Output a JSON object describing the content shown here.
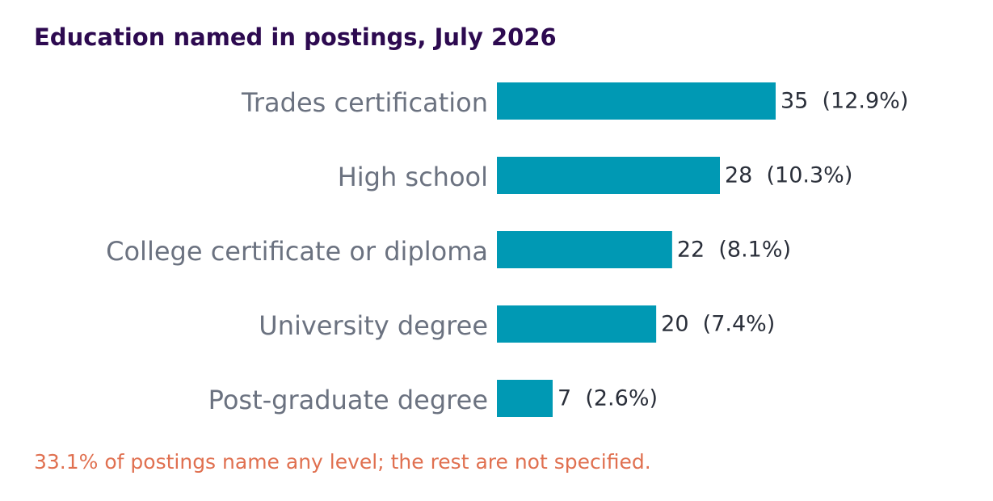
{
  "chart_data": {
    "type": "bar",
    "orientation": "horizontal",
    "title": "Education named in postings, July 2026",
    "categories": [
      "Trades certification",
      "High school",
      "College certificate or diploma",
      "University degree",
      "Post-graduate degree"
    ],
    "values": [
      35,
      28,
      22,
      20,
      7
    ],
    "value_labels": [
      "35  (12.9%)",
      "28  (10.3%)",
      "22  (8.1%)",
      "20  (7.4%)",
      "7  (2.6%)"
    ],
    "color": "#0099b4",
    "note": "33.1% of postings name any level; the rest are not specified."
  }
}
